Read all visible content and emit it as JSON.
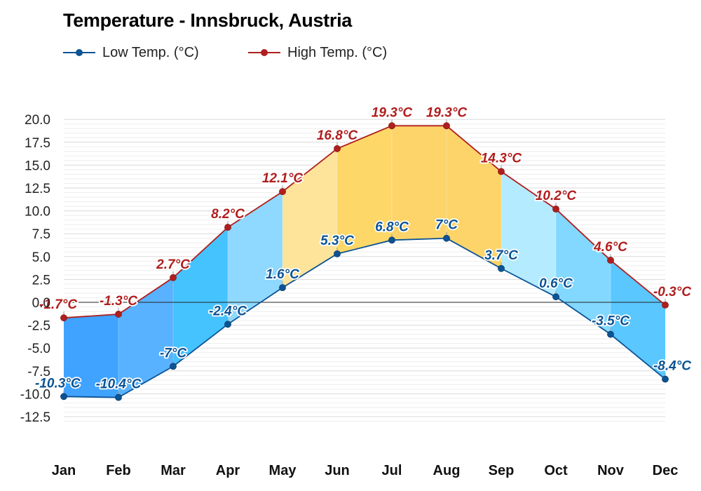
{
  "chart_data": {
    "type": "area",
    "title": "Temperature - Innsbruck, Austria",
    "categories": [
      "Jan",
      "Feb",
      "Mar",
      "Apr",
      "May",
      "Jun",
      "Jul",
      "Aug",
      "Sep",
      "Oct",
      "Nov",
      "Dec"
    ],
    "series": [
      {
        "name": "Low Temp. (°C)",
        "values": [
          -10.3,
          -10.4,
          -7,
          -2.4,
          1.6,
          5.3,
          6.8,
          7,
          3.7,
          0.6,
          -3.5,
          -8.4
        ],
        "labels": [
          "-10.3°C",
          "-10.4°C",
          "-7°C",
          "-2.4°C",
          "1.6°C",
          "5.3°C",
          "6.8°C",
          "7°C",
          "3.7°C",
          "0.6°C",
          "-3.5°C",
          "-8.4°C"
        ],
        "color": "#0b5394"
      },
      {
        "name": "High Temp. (°C)",
        "values": [
          -1.7,
          -1.3,
          2.7,
          8.2,
          12.1,
          16.8,
          19.3,
          19.3,
          14.3,
          10.2,
          4.6,
          -0.3
        ],
        "labels": [
          "-1.7°C",
          "-1.3°C",
          "2.7°C",
          "8.2°C",
          "12.1°C",
          "16.8°C",
          "19.3°C",
          "19.3°C",
          "14.3°C",
          "10.2°C",
          "4.6°C",
          "-0.3°C"
        ],
        "color": "#b01e1e"
      }
    ],
    "band_colors": [
      "#3fa3ff",
      "#58b2ff",
      "#45c3ff",
      "#8fd8ff",
      "#fde49a",
      "#fdd868",
      "#fdd46a",
      "#fdd46a",
      "#b4ebff",
      "#82d8ff",
      "#5ac7ff",
      "#3fa3ff"
    ],
    "yticks": [
      "20.0",
      "17.5",
      "15.0",
      "12.5",
      "10.0",
      "7.5",
      "5.0",
      "2.5",
      "0.0",
      "-2.5",
      "-5.0",
      "-7.5",
      "-10.0",
      "-12.5"
    ],
    "ylim": [
      -13.5,
      20.5
    ],
    "grid": true,
    "legend_position": "top-left"
  }
}
